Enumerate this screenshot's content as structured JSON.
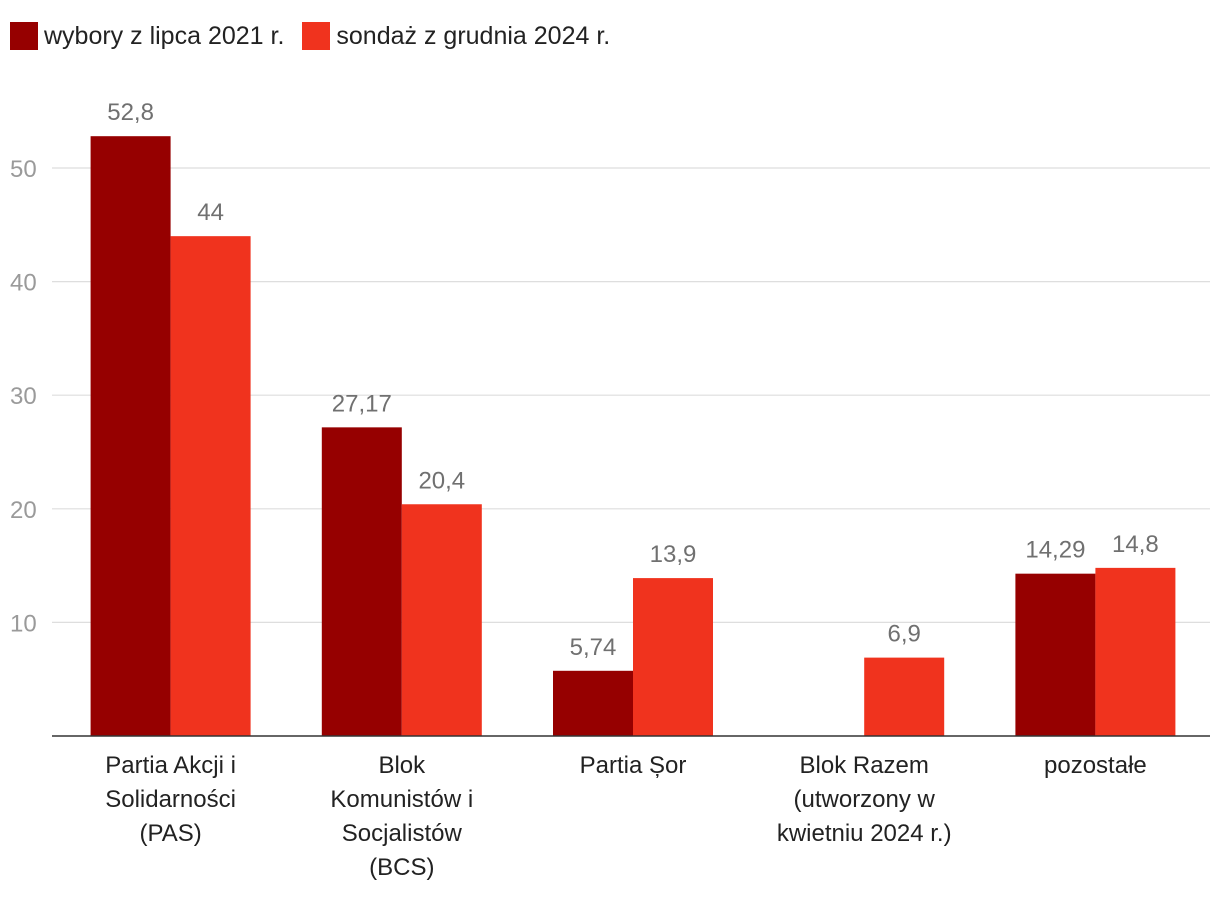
{
  "chart_data": {
    "type": "bar",
    "title": "",
    "xlabel": "",
    "ylabel": "",
    "ylim": [
      0,
      60
    ],
    "yticks": [
      10,
      20,
      30,
      40,
      50
    ],
    "grid": true,
    "legend_position": "top-left",
    "categories": [
      [
        "Partia Akcji i",
        "Solidarności",
        "(PAS)"
      ],
      [
        "Blok",
        "Komunistów i",
        "Socjalistów",
        "(BCS)"
      ],
      [
        "Partia Șor"
      ],
      [
        "Blok Razem",
        "(utworzony w",
        "kwietniu 2024 r.)"
      ],
      [
        "pozostałe"
      ]
    ],
    "series": [
      {
        "name": "wybory z lipca 2021 r.",
        "color": "#960000",
        "values": [
          52.8,
          27.17,
          5.74,
          null,
          14.29
        ],
        "labels": [
          "52,8",
          "27,17",
          "5,74",
          "",
          "14,29"
        ]
      },
      {
        "name": "sondaż z grudnia 2024 r.",
        "color": "#f0331e",
        "values": [
          44,
          20.4,
          13.9,
          6.9,
          14.8
        ],
        "labels": [
          "44",
          "20,4",
          "13,9",
          "6,9",
          "14,8"
        ]
      }
    ]
  }
}
